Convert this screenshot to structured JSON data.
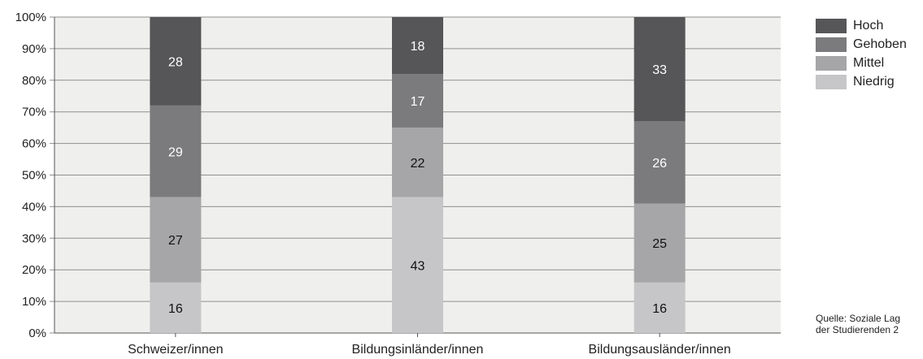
{
  "chart_data": {
    "type": "bar",
    "stacked": true,
    "categories": [
      "Schweizer/innen",
      "Bildungsinländer/innen",
      "Bildungsausländer/innen"
    ],
    "series": [
      {
        "name": "Niedrig",
        "values": [
          16,
          43,
          16
        ],
        "color": "#c6c6c8"
      },
      {
        "name": "Mittel",
        "values": [
          27,
          22,
          25
        ],
        "color": "#a6a6a8"
      },
      {
        "name": "Gehoben",
        "values": [
          29,
          17,
          26
        ],
        "color": "#7b7b7d"
      },
      {
        "name": "Hoch",
        "values": [
          28,
          18,
          33
        ],
        "color": "#565658"
      }
    ],
    "legend_order": [
      "Hoch",
      "Gehoben",
      "Mittel",
      "Niedrig"
    ],
    "ylim": [
      0,
      100
    ],
    "yticks": [
      "0%",
      "10%",
      "20%",
      "30%",
      "40%",
      "50%",
      "60%",
      "70%",
      "80%",
      "90%",
      "100%"
    ],
    "grid": true,
    "plot_background": "#efefed",
    "legend_position": "right",
    "label_colors": {
      "Niedrig": "#111111",
      "Mittel": "#111111",
      "Gehoben": "#ffffff",
      "Hoch": "#ffffff"
    }
  },
  "source_note": {
    "line1": "Quelle: Soziale Lag",
    "line2": "der Studierenden 2"
  }
}
